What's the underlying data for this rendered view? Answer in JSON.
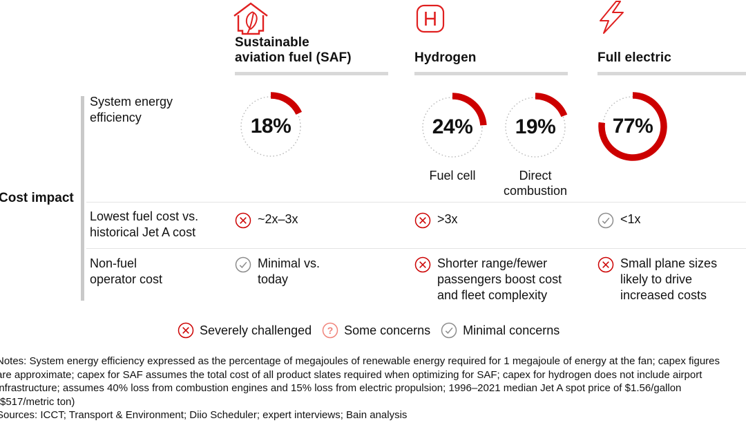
{
  "colors": {
    "accent_red": "#cc0000",
    "concern_salmon": "#f0837a",
    "neutral_gray": "#8c8c8c",
    "divider_gray": "#d8d8d8"
  },
  "header": {
    "columns": [
      {
        "icon": "eco-house-icon",
        "title": "Sustainable\naviation fuel (SAF)"
      },
      {
        "icon": "hydrogen-icon",
        "title": "Hydrogen"
      },
      {
        "icon": "lightning-icon",
        "title": "Full electric"
      }
    ]
  },
  "row_group": {
    "label": "Cost impact"
  },
  "rows": [
    {
      "label": "System energy\nefficiency",
      "type": "donut-gauges"
    },
    {
      "label": "Lowest fuel cost vs.\nhistorical Jet A cost",
      "cells": [
        {
          "icon": "x-circle",
          "status": "Severely challenged",
          "text": "~2x–3x"
        },
        {
          "icon": "x-circle",
          "status": "Severely challenged",
          "text": ">3x"
        },
        {
          "icon": "check-circle",
          "status": "Minimal concerns",
          "text": "<1x"
        }
      ]
    },
    {
      "label": "Non-fuel\noperator cost",
      "cells": [
        {
          "icon": "check-circle",
          "status": "Minimal concerns",
          "text": "Minimal vs.\ntoday"
        },
        {
          "icon": "x-circle",
          "status": "Severely challenged",
          "text": "Shorter range/fewer\npassengers boost cost\nand fleet complexity"
        },
        {
          "icon": "x-circle",
          "status": "Severely challenged",
          "text": "Small plane sizes\nlikely to drive\nincreased costs"
        }
      ]
    }
  ],
  "chart_data": {
    "type": "donut-gauges",
    "metric": "System energy efficiency",
    "unit": "%",
    "arc_color": "#cc0000",
    "track_style": "dotted",
    "gauges": [
      {
        "group": "Sustainable aviation fuel (SAF)",
        "label": "",
        "value": 18,
        "display": "18%"
      },
      {
        "group": "Hydrogen",
        "label": "Fuel cell",
        "value": 24,
        "display": "24%"
      },
      {
        "group": "Hydrogen",
        "label": "Direct\ncombustion",
        "value": 19,
        "display": "19%"
      },
      {
        "group": "Full electric",
        "label": "",
        "value": 77,
        "display": "77%"
      }
    ]
  },
  "legend": {
    "items": [
      {
        "icon": "x-circle",
        "label": "Severely challenged"
      },
      {
        "icon": "question-circle",
        "label": "Some concerns"
      },
      {
        "icon": "check-circle",
        "label": "Minimal concerns"
      }
    ]
  },
  "notes": "Notes: System energy efficiency expressed as the percentage of megajoules of renewable energy required for 1 megajoule of energy at the fan; capex figures\nare approximate; capex for SAF assumes the total cost of all product slates required when optimizing for SAF; capex for hydrogen does not include airport\ninfrastructure; assumes 40% loss from combustion engines and 15% loss from electric propulsion; 1996–2021 median Jet A spot price of $1.56/gallon\n($517/metric ton)\nSources: ICCT; Transport & Environment; Diio Scheduler; expert interviews; Bain analysis"
}
